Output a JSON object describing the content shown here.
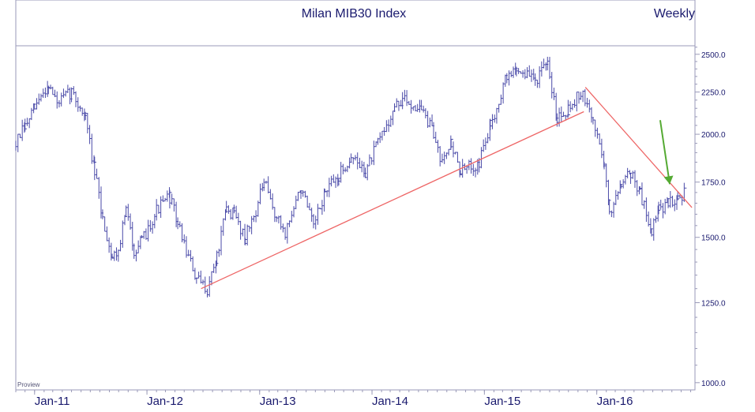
{
  "chart_data": {
    "type": "line",
    "title": "Milan MIB30 Index",
    "frequency_label": "Weekly",
    "watermark": "Proview",
    "y_scale": "log",
    "ylim": [
      980,
      2560
    ],
    "yticks": [
      1000.0,
      1250.0,
      1500.0,
      1750.0,
      2000.0,
      2250.0,
      2500.0
    ],
    "ytick_labels": [
      "1000.0",
      "1250.0",
      "1500.0",
      "1750.0",
      "2000.0",
      "2250.0",
      "2500.0"
    ],
    "xlim": [
      "2010-11-01",
      "2016-11-15"
    ],
    "xtick_dates": [
      "2011-01-01",
      "2012-01-01",
      "2013-01-01",
      "2014-01-01",
      "2015-01-01",
      "2016-01-01"
    ],
    "xtick_labels": [
      "Jan-11",
      "Jan-12",
      "Jan-13",
      "Jan-14",
      "Jan-15",
      "Jan-16"
    ],
    "grid": false,
    "series": [
      {
        "color": "#4a4aa8",
        "points": [
          [
            "2010-11-01",
            1950
          ],
          [
            "2010-12-01",
            2040
          ],
          [
            "2011-01-01",
            2150
          ],
          [
            "2011-02-15",
            2300
          ],
          [
            "2011-03-15",
            2180
          ],
          [
            "2011-05-01",
            2250
          ],
          [
            "2011-06-15",
            2100
          ],
          [
            "2011-07-15",
            1800
          ],
          [
            "2011-08-10",
            1580
          ],
          [
            "2011-09-10",
            1420
          ],
          [
            "2011-09-30",
            1450
          ],
          [
            "2011-10-25",
            1620
          ],
          [
            "2011-11-20",
            1450
          ],
          [
            "2011-12-15",
            1480
          ],
          [
            "2012-02-01",
            1620
          ],
          [
            "2012-03-15",
            1680
          ],
          [
            "2012-04-10",
            1560
          ],
          [
            "2012-05-15",
            1420
          ],
          [
            "2012-06-10",
            1330
          ],
          [
            "2012-07-15",
            1300
          ],
          [
            "2012-08-15",
            1420
          ],
          [
            "2012-09-15",
            1620
          ],
          [
            "2012-10-10",
            1600
          ],
          [
            "2012-11-15",
            1500
          ],
          [
            "2012-12-20",
            1620
          ],
          [
            "2013-01-15",
            1750
          ],
          [
            "2013-02-25",
            1580
          ],
          [
            "2013-03-25",
            1520
          ],
          [
            "2013-05-15",
            1720
          ],
          [
            "2013-06-25",
            1540
          ],
          [
            "2013-08-01",
            1700
          ],
          [
            "2013-09-15",
            1780
          ],
          [
            "2013-10-25",
            1880
          ],
          [
            "2013-12-10",
            1800
          ],
          [
            "2014-01-20",
            1950
          ],
          [
            "2014-03-15",
            2150
          ],
          [
            "2014-04-10",
            2200
          ],
          [
            "2014-06-10",
            2150
          ],
          [
            "2014-07-20",
            2000
          ],
          [
            "2014-08-10",
            1880
          ],
          [
            "2014-09-15",
            1950
          ],
          [
            "2014-10-15",
            1800
          ],
          [
            "2014-12-15",
            1850
          ],
          [
            "2015-01-20",
            2050
          ],
          [
            "2015-03-15",
            2350
          ],
          [
            "2015-04-15",
            2400
          ],
          [
            "2015-06-15",
            2330
          ],
          [
            "2015-07-25",
            2420
          ],
          [
            "2015-08-25",
            2100
          ],
          [
            "2015-09-30",
            2150
          ],
          [
            "2015-11-10",
            2250
          ],
          [
            "2015-12-20",
            2080
          ],
          [
            "2016-01-25",
            1850
          ],
          [
            "2016-02-11",
            1600
          ],
          [
            "2016-03-20",
            1760
          ],
          [
            "2016-04-20",
            1800
          ],
          [
            "2016-05-20",
            1700
          ],
          [
            "2016-06-27",
            1530
          ],
          [
            "2016-07-20",
            1620
          ],
          [
            "2016-08-20",
            1650
          ],
          [
            "2016-09-20",
            1680
          ],
          [
            "2016-10-15",
            1700
          ]
        ]
      }
    ],
    "trendlines": [
      {
        "color": "#ee6666",
        "from": [
          "2012-06-25",
          1300
        ],
        "to": [
          "2015-11-20",
          2130
        ]
      },
      {
        "color": "#ee6666",
        "from": [
          "2015-11-25",
          2280
        ],
        "to": [
          "2016-11-05",
          1630
        ]
      }
    ],
    "annotations": [
      {
        "type": "arrow",
        "color": "#55aa33",
        "from": [
          "2016-07-25",
          2080
        ],
        "to": [
          "2016-08-25",
          1740
        ]
      }
    ]
  }
}
